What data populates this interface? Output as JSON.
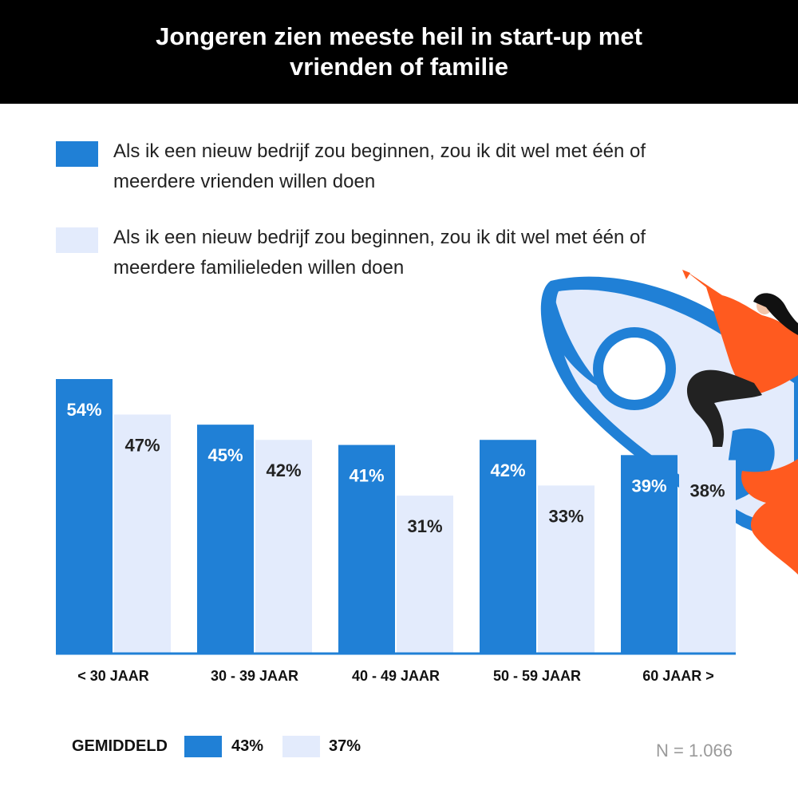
{
  "title": "Jongeren zien meeste heil in start-up met vrienden of familie",
  "colors": {
    "dark_blue": "#2080d6",
    "light_blue": "#e3ebfc",
    "header_bg": "#000000",
    "orange": "#ff5a1f"
  },
  "legend": [
    {
      "text": "Als ik een nieuw bedrijf zou beginnen, zou ik dit wel met één of meerdere vrienden willen doen"
    },
    {
      "text": "Als ik een nieuw bedrijf zou beginnen, zou ik dit wel met één of meerdere familieleden willen doen"
    }
  ],
  "chart_data": {
    "type": "bar",
    "categories": [
      "< 30 JAAR",
      "30 - 39 JAAR",
      "40 - 49 JAAR",
      "50 - 59 JAAR",
      "60 JAAR >"
    ],
    "series": [
      {
        "values": [
          54,
          45,
          41,
          42,
          39
        ],
        "labels": [
          "54%",
          "45%",
          "41%",
          "42%",
          "39%"
        ]
      },
      {
        "values": [
          47,
          42,
          31,
          33,
          38
        ],
        "labels": [
          "47%",
          "42%",
          "31%",
          "33%",
          "38%"
        ]
      }
    ],
    "ylim": [
      0,
      54
    ],
    "legend_position": "top-left"
  },
  "footer": {
    "average_label": "GEMIDDELD",
    "average_values": [
      "43%",
      "37%"
    ],
    "n_label": "N = 1.066"
  },
  "illustration": {
    "icon": "rocket-with-woman-illustration"
  }
}
